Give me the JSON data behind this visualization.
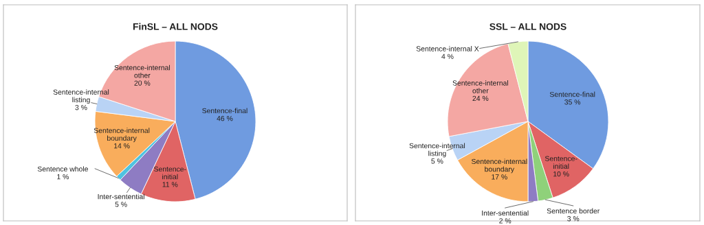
{
  "chart_data": [
    {
      "type": "pie",
      "title": "FinSL – ALL NODS",
      "categories": [
        "Sentence-final",
        "Sentence-\ninitial",
        "Inter-sentential",
        "Sentence whole",
        "Sentence-internal\nboundary",
        "Sentence-internal\nlisting",
        "Sentence-internal\nother"
      ],
      "values": [
        46,
        11,
        5,
        1,
        14,
        3,
        20
      ],
      "value_labels": [
        "46 %",
        "11 %",
        "5 %",
        "1 %",
        "14 %",
        "3 %",
        "20 %"
      ],
      "colors": [
        "#6f9be0",
        "#e06464",
        "#8e7cc3",
        "#4fc3e0",
        "#f9ad5c",
        "#b9d3f5",
        "#f4a7a3"
      ]
    },
    {
      "type": "pie",
      "title": "SSL – ALL NODS",
      "categories": [
        "Sentence-final",
        "Sentence-\ninitial",
        "Sentence border",
        "Inter-sentential",
        "Sentence-internal\nboundary",
        "Sentence-internal\nlisting",
        "Sentence-internal\nother",
        "Sentence-internal X"
      ],
      "values": [
        35,
        10,
        3,
        2,
        17,
        5,
        24,
        4
      ],
      "value_labels": [
        "35 %",
        "10 %",
        "3 %",
        "2 %",
        "17 %",
        "5 %",
        "24 %",
        "4 %"
      ],
      "colors": [
        "#6f9be0",
        "#e06464",
        "#8fd17a",
        "#8e7cc3",
        "#f9ad5c",
        "#b9d3f5",
        "#f4a7a3",
        "#dff5b8"
      ]
    }
  ]
}
